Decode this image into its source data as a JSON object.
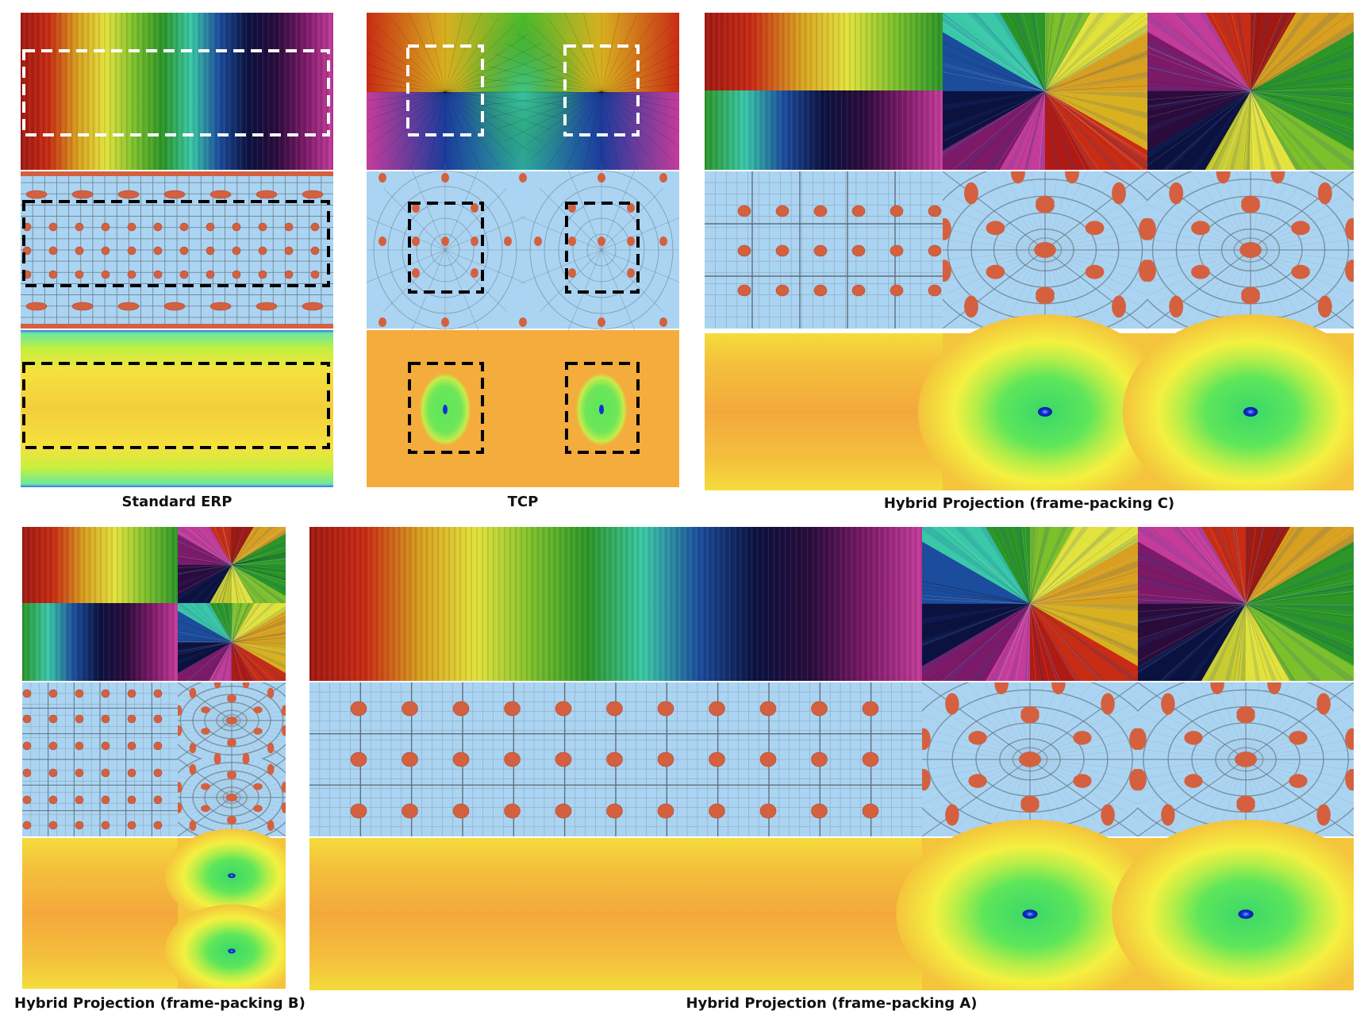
{
  "captions": {
    "erp": "Standard ERP",
    "tcp": "TCP",
    "hybrid_c": "Hybrid Projection (frame-packing C)",
    "hybrid_b": "Hybrid Projection (frame-packing B)",
    "hybrid_a": "Hybrid Projection (frame-packing A)"
  },
  "colors": {
    "grid_background": "#aad4f2",
    "grid_dot": "#d4603f",
    "grid_line": "#6c7f8c",
    "heat_orange": "#f4ac3c",
    "heat_yellow": "#f5ee3c",
    "heat_green": "#5ee65a",
    "heat_blue": "#1230d8",
    "dash_white": "#ffffff",
    "dash_black": "#000000"
  },
  "spectrum": [
    "#a01a12",
    "#c82c14",
    "#d8a020",
    "#e2e23c",
    "#7cc02c",
    "#2c9628",
    "#3ac8a8",
    "#1c4c9c",
    "#0c1240",
    "#2a0c3c",
    "#7c1a68",
    "#c43c9a"
  ]
}
